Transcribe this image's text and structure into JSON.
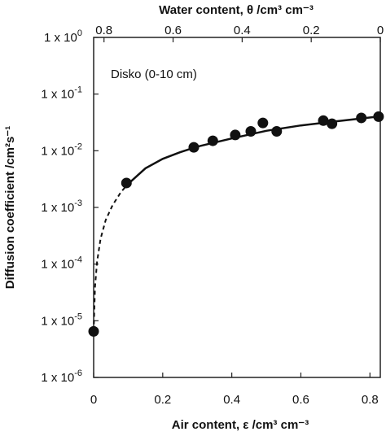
{
  "chart_data": {
    "type": "scatter",
    "annotation": "Disko (0-10 cm)",
    "xlabel": "Air content, ε /cm³ cm⁻³",
    "x2label": "Water content, θ /cm³ cm⁻³",
    "ylabel": "Diffusion coefficient /cm²s⁻¹",
    "xlim": [
      0,
      0.83
    ],
    "ylim": [
      1e-06,
      1
    ],
    "yscale": "log",
    "grid": false,
    "x_ticks": [
      {
        "value": 0,
        "label": "0"
      },
      {
        "value": 0.2,
        "label": "0.2"
      },
      {
        "value": 0.4,
        "label": "0.4"
      },
      {
        "value": 0.6,
        "label": "0.6"
      },
      {
        "value": 0.8,
        "label": "0.8"
      }
    ],
    "x2_ticks": [
      {
        "value": 0.8,
        "label": "0.8"
      },
      {
        "value": 0.6,
        "label": "0.6"
      },
      {
        "value": 0.4,
        "label": "0.4"
      },
      {
        "value": 0.2,
        "label": "0.2"
      },
      {
        "value": 0,
        "label": "0"
      }
    ],
    "y_ticks": [
      {
        "value": 1,
        "base": "1 x 10",
        "exp": "0"
      },
      {
        "value": 0.1,
        "base": "1 x 10",
        "exp": "-1"
      },
      {
        "value": 0.01,
        "base": "1 x 10",
        "exp": "-2"
      },
      {
        "value": 0.001,
        "base": "1 x 10",
        "exp": "-3"
      },
      {
        "value": 0.0001,
        "base": "1 x 10",
        "exp": "-4"
      },
      {
        "value": 1e-05,
        "base": "1 x 10",
        "exp": "-5"
      },
      {
        "value": 1e-06,
        "base": "1 x 10",
        "exp": "-6"
      }
    ],
    "points": [
      {
        "x": 0.0,
        "y": 6.5e-06
      },
      {
        "x": 0.095,
        "y": 0.0027
      },
      {
        "x": 0.29,
        "y": 0.0115
      },
      {
        "x": 0.345,
        "y": 0.015
      },
      {
        "x": 0.41,
        "y": 0.019
      },
      {
        "x": 0.455,
        "y": 0.022
      },
      {
        "x": 0.49,
        "y": 0.031
      },
      {
        "x": 0.53,
        "y": 0.022
      },
      {
        "x": 0.665,
        "y": 0.034
      },
      {
        "x": 0.69,
        "y": 0.03
      },
      {
        "x": 0.775,
        "y": 0.038
      },
      {
        "x": 0.825,
        "y": 0.04
      }
    ],
    "fit_curve": {
      "dashed_segment": [
        {
          "x": 0.0,
          "y": 6.5e-06
        },
        {
          "x": 0.004,
          "y": 4e-05
        },
        {
          "x": 0.01,
          "y": 0.00011
        },
        {
          "x": 0.02,
          "y": 0.00028
        },
        {
          "x": 0.035,
          "y": 0.0006
        },
        {
          "x": 0.055,
          "y": 0.0011
        },
        {
          "x": 0.08,
          "y": 0.0019
        },
        {
          "x": 0.1,
          "y": 0.0026
        }
      ],
      "solid_segment": [
        {
          "x": 0.1,
          "y": 0.0026
        },
        {
          "x": 0.15,
          "y": 0.0049
        },
        {
          "x": 0.2,
          "y": 0.0072
        },
        {
          "x": 0.25,
          "y": 0.0094
        },
        {
          "x": 0.3,
          "y": 0.0118
        },
        {
          "x": 0.4,
          "y": 0.0165
        },
        {
          "x": 0.5,
          "y": 0.0225
        },
        {
          "x": 0.6,
          "y": 0.028
        },
        {
          "x": 0.7,
          "y": 0.033
        },
        {
          "x": 0.83,
          "y": 0.0405
        }
      ]
    },
    "colors": {
      "marker": "#111111",
      "line": "#111111",
      "axis": "#222222"
    }
  }
}
